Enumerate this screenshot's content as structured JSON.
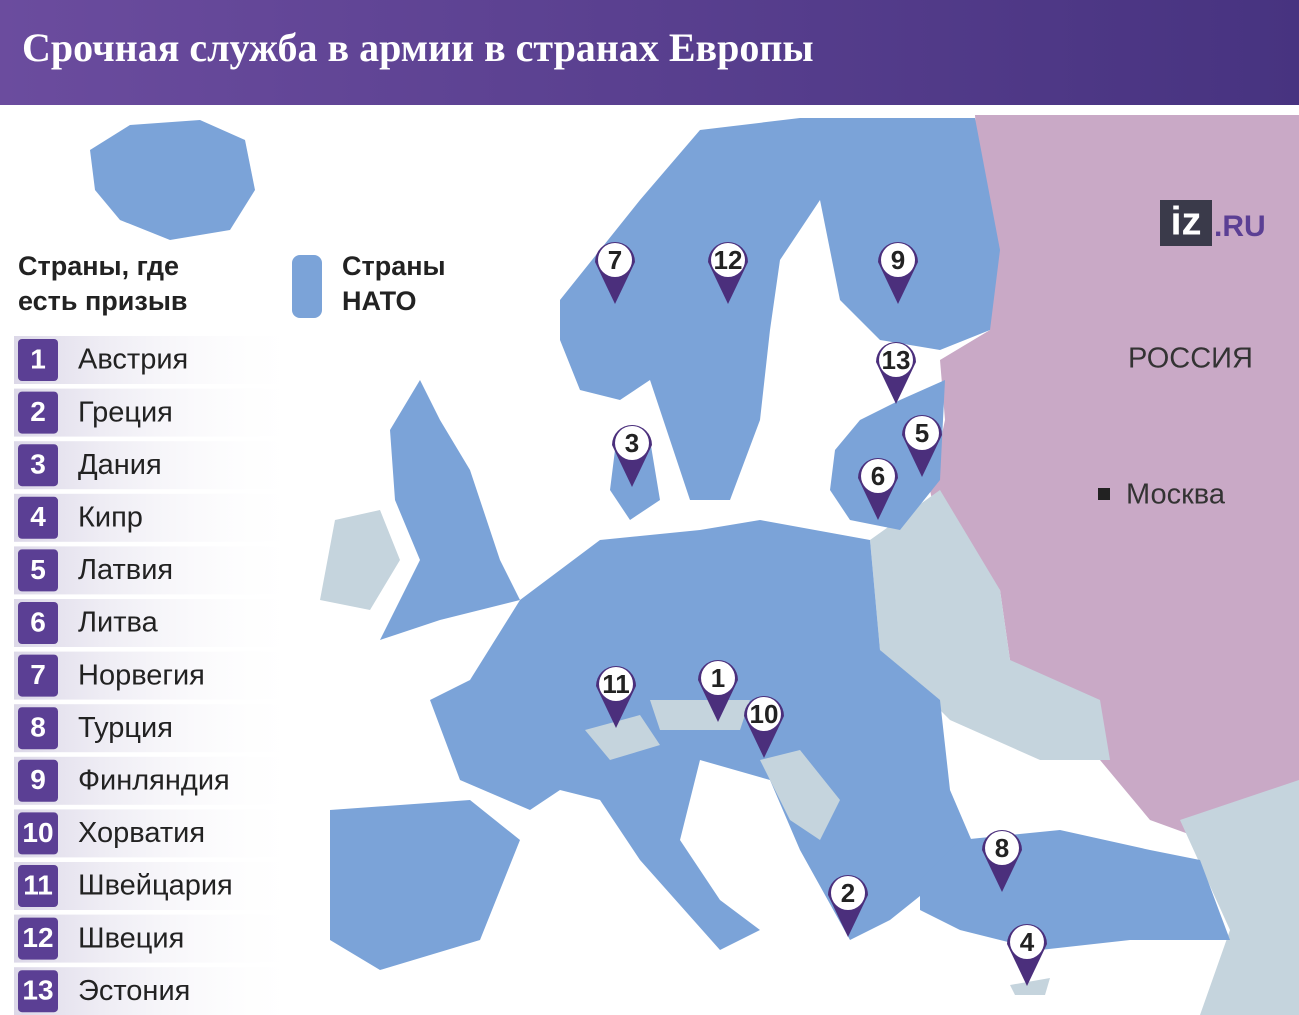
{
  "header": {
    "title": "Срочная служба в армии в странах Европы"
  },
  "legend": {
    "conscription": "Страны, где есть призыв",
    "nato_line1": "Страны",
    "nato_line2": "НАТО"
  },
  "logo": {
    "mark": "iz",
    "suffix": ".RU"
  },
  "map_labels": {
    "russia": "РОССИЯ",
    "moscow": "Москва"
  },
  "list": {
    "items": [
      {
        "num": "1",
        "name": "Австрия"
      },
      {
        "num": "2",
        "name": "Греция"
      },
      {
        "num": "3",
        "name": "Дания"
      },
      {
        "num": "4",
        "name": "Кипр"
      },
      {
        "num": "5",
        "name": "Латвия"
      },
      {
        "num": "6",
        "name": "Литва"
      },
      {
        "num": "7",
        "name": "Норвегия"
      },
      {
        "num": "8",
        "name": "Турция"
      },
      {
        "num": "9",
        "name": "Финляндия"
      },
      {
        "num": "10",
        "name": "Хорватия"
      },
      {
        "num": "11",
        "name": "Швейцария"
      },
      {
        "num": "12",
        "name": "Швеция"
      },
      {
        "num": "13",
        "name": "Эстония"
      }
    ]
  }
}
